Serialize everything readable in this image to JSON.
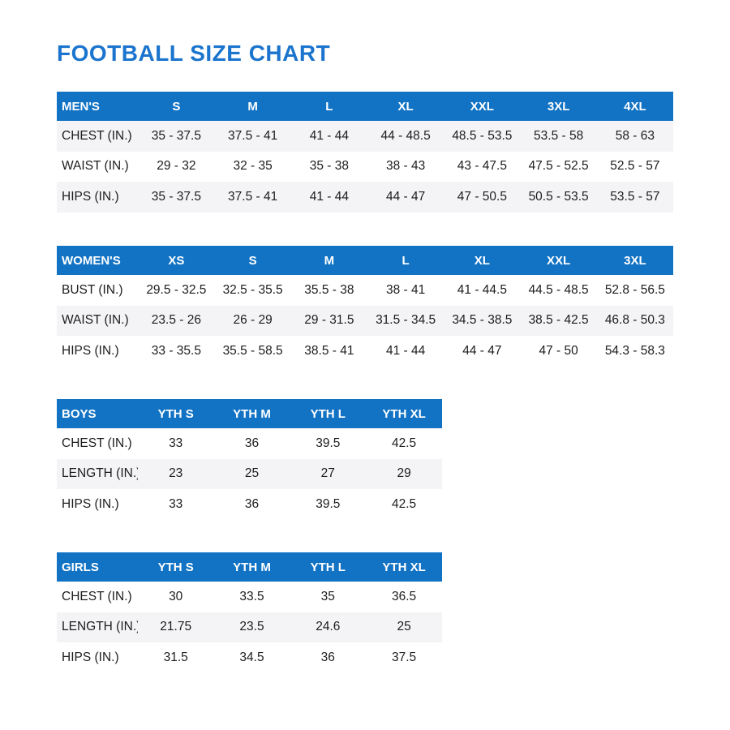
{
  "page": {
    "title": "FOOTBALL SIZE CHART"
  },
  "colors": {
    "header_bg": "#1273c4",
    "title": "#1b74cd",
    "stripe_bg": "#f4f4f6",
    "text": "#1d1d1f"
  },
  "tables": [
    {
      "id": "mens",
      "stripe": "odd",
      "header": [
        "MEN'S",
        "S",
        "M",
        "L",
        "XL",
        "XXL",
        "3XL",
        "4XL"
      ],
      "rows": [
        [
          "CHEST (IN.)",
          "35 - 37.5",
          "37.5 - 41",
          "41 - 44",
          "44 - 48.5",
          "48.5 - 53.5",
          "53.5 - 58",
          "58 - 63"
        ],
        [
          "WAIST (IN.)",
          "29 - 32",
          "32 - 35",
          "35 - 38",
          "38 - 43",
          "43 - 47.5",
          "47.5 - 52.5",
          "52.5 - 57"
        ],
        [
          "HIPS (IN.)",
          "35 - 37.5",
          "37.5 - 41",
          "41 - 44",
          "44 - 47",
          "47 - 50.5",
          "50.5 - 53.5",
          "53.5 - 57"
        ]
      ]
    },
    {
      "id": "womens",
      "stripe": "even",
      "header": [
        "WOMEN'S",
        "XS",
        "S",
        "M",
        "L",
        "XL",
        "XXL",
        "3XL"
      ],
      "rows": [
        [
          "BUST (IN.)",
          "29.5 - 32.5",
          "32.5 - 35.5",
          "35.5 - 38",
          "38 - 41",
          "41 - 44.5",
          "44.5 - 48.5",
          "52.8 - 56.5"
        ],
        [
          "WAIST (IN.)",
          "23.5 - 26",
          "26 - 29",
          "29 - 31.5",
          "31.5 - 34.5",
          "34.5 - 38.5",
          "38.5 - 42.5",
          "46.8 - 50.3"
        ],
        [
          "HIPS (IN.)",
          "33 - 35.5",
          "35.5 - 58.5",
          "38.5 - 41",
          "41 - 44",
          "44 - 47",
          "47 - 50",
          "54.3 - 58.3"
        ]
      ]
    },
    {
      "id": "boys",
      "stripe": "even",
      "header": [
        "BOYS",
        "YTH S",
        "YTH M",
        "YTH L",
        "YTH XL"
      ],
      "rows": [
        [
          "CHEST (IN.)",
          "33",
          "36",
          "39.5",
          "42.5"
        ],
        [
          "LENGTH (IN.)",
          "23",
          "25",
          "27",
          "29"
        ],
        [
          "HIPS (IN.)",
          "33",
          "36",
          "39.5",
          "42.5"
        ]
      ]
    },
    {
      "id": "girls",
      "stripe": "even",
      "header": [
        "GIRLS",
        "YTH S",
        "YTH M",
        "YTH L",
        "YTH XL"
      ],
      "rows": [
        [
          "CHEST (IN.)",
          "30",
          "33.5",
          "35",
          "36.5"
        ],
        [
          "LENGTH (IN.)",
          "21.75",
          "23.5",
          "24.6",
          "25"
        ],
        [
          "HIPS (IN.)",
          "31.5",
          "34.5",
          "36",
          "37.5"
        ]
      ]
    }
  ]
}
